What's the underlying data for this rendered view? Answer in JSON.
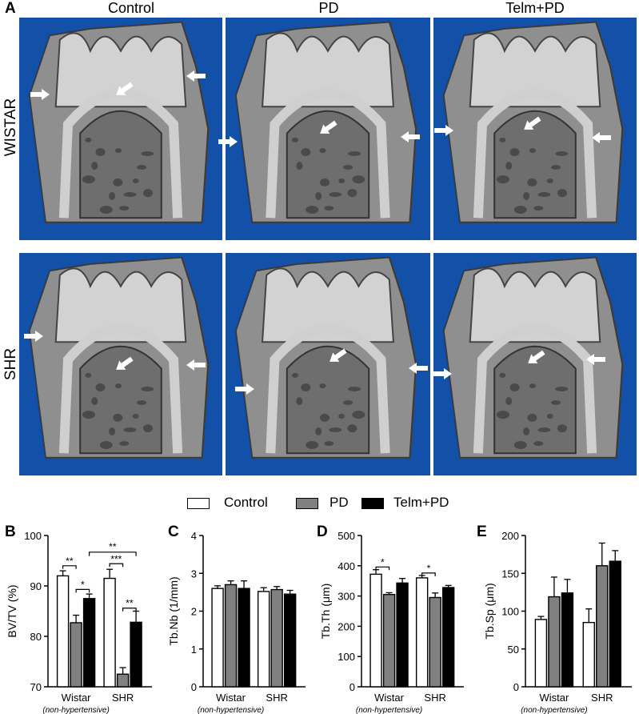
{
  "figure": {
    "panel_a_label": "A",
    "columns": [
      "Control",
      "PD",
      "Telm+PD"
    ],
    "rows": [
      "WISTAR",
      "SHR"
    ]
  },
  "legend": {
    "items": [
      {
        "label": "Control",
        "color": "#ffffff"
      },
      {
        "label": "PD",
        "color": "#808080"
      },
      {
        "label": "Telm+PD",
        "color": "#000000"
      }
    ]
  },
  "colors": {
    "tile_background": "#1350a8",
    "bone": "#c8c8c8"
  },
  "chart_data": [
    {
      "panel": "B",
      "type": "bar",
      "ylabel": "BV/TV (%)",
      "ylim": [
        70,
        100
      ],
      "yticks": [
        70,
        80,
        90,
        100
      ],
      "categories": [
        "Wistar",
        "SHR"
      ],
      "category_notes": [
        "(non-hypertensive)",
        ""
      ],
      "series": [
        {
          "name": "Control",
          "values": [
            92.0,
            91.5
          ],
          "errors": [
            1.0,
            1.8
          ]
        },
        {
          "name": "PD",
          "values": [
            82.7,
            72.5
          ],
          "errors": [
            1.5,
            1.3
          ]
        },
        {
          "name": "Telm+PD",
          "values": [
            87.5,
            82.8
          ],
          "errors": [
            0.9,
            2.2
          ]
        }
      ],
      "annotations": [
        "**",
        "*",
        "***",
        "**",
        "**"
      ]
    },
    {
      "panel": "C",
      "type": "bar",
      "ylabel": "Tb.Nb (1/mm)",
      "ylim": [
        0,
        4
      ],
      "yticks": [
        0,
        1,
        2,
        3,
        4
      ],
      "categories": [
        "Wistar",
        "SHR"
      ],
      "category_notes": [
        "(non-hypertensive)",
        ""
      ],
      "series": [
        {
          "name": "Control",
          "values": [
            2.6,
            2.52
          ],
          "errors": [
            0.07,
            0.1
          ]
        },
        {
          "name": "PD",
          "values": [
            2.7,
            2.57
          ],
          "errors": [
            0.1,
            0.08
          ]
        },
        {
          "name": "Telm+PD",
          "values": [
            2.6,
            2.45
          ],
          "errors": [
            0.2,
            0.1
          ]
        }
      ],
      "annotations": []
    },
    {
      "panel": "D",
      "type": "bar",
      "ylabel": "Tb.Th (μm)",
      "ylim": [
        0,
        500
      ],
      "yticks": [
        0,
        100,
        200,
        300,
        400,
        500
      ],
      "categories": [
        "Wistar",
        "SHR"
      ],
      "category_notes": [
        "(non-hypertensive)",
        ""
      ],
      "series": [
        {
          "name": "Control",
          "values": [
            372,
            360
          ],
          "errors": [
            15,
            8
          ]
        },
        {
          "name": "PD",
          "values": [
            305,
            295
          ],
          "errors": [
            6,
            15
          ]
        },
        {
          "name": "Telm+PD",
          "values": [
            343,
            328
          ],
          "errors": [
            15,
            7
          ]
        }
      ],
      "annotations": [
        "*",
        "*"
      ]
    },
    {
      "panel": "E",
      "type": "bar",
      "ylabel": "Tb.Sp (μm)",
      "ylim": [
        0,
        200
      ],
      "yticks": [
        0,
        50,
        100,
        150,
        200
      ],
      "categories": [
        "Wistar",
        "SHR"
      ],
      "category_notes": [
        "(non-hypertensive)",
        ""
      ],
      "series": [
        {
          "name": "Control",
          "values": [
            89,
            85
          ],
          "errors": [
            4,
            18
          ]
        },
        {
          "name": "PD",
          "values": [
            119,
            160
          ],
          "errors": [
            26,
            30
          ]
        },
        {
          "name": "Telm+PD",
          "values": [
            124,
            166
          ],
          "errors": [
            18,
            14
          ]
        }
      ],
      "annotations": []
    }
  ]
}
